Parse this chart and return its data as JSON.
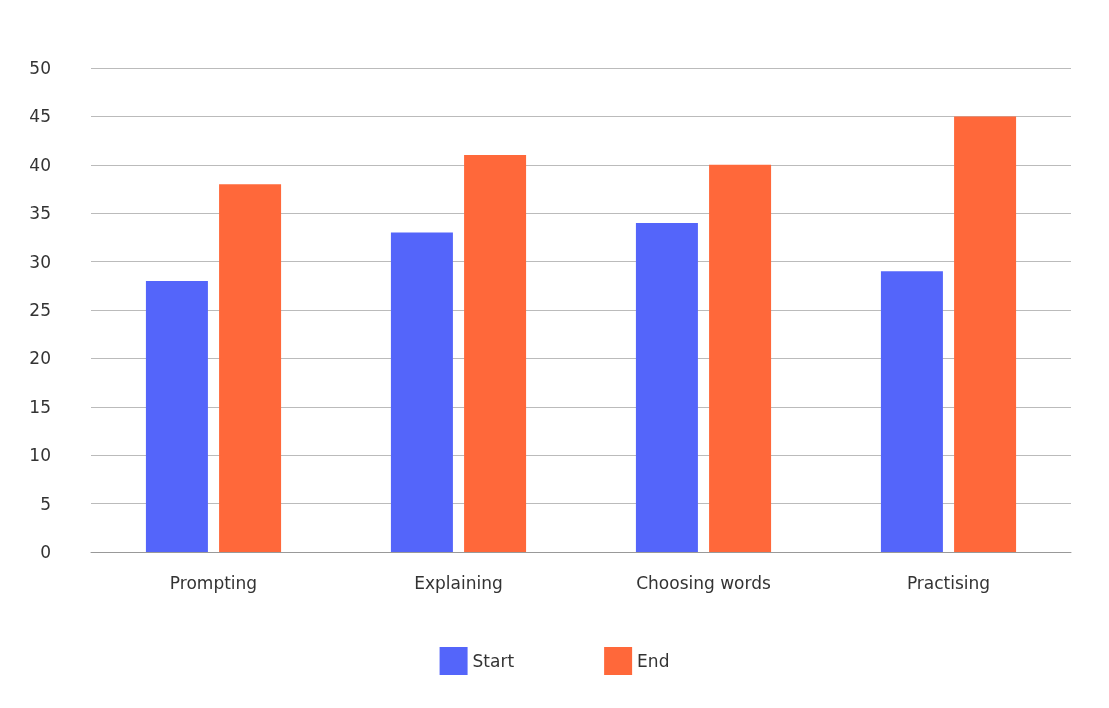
{
  "chart_data": {
    "type": "bar",
    "categories": [
      "Prompting",
      "Explaining",
      "Choosing words",
      "Practising"
    ],
    "series": [
      {
        "name": "Start",
        "color": "#5465fa",
        "values": [
          28,
          33,
          34,
          29
        ]
      },
      {
        "name": "End",
        "color": "#ff683a",
        "values": [
          38,
          41,
          40,
          45
        ]
      }
    ],
    "ylim": [
      0,
      50
    ],
    "yticks": [
      0,
      5,
      10,
      15,
      20,
      25,
      30,
      35,
      40,
      45,
      50
    ],
    "grid": "y",
    "legend": "bottom"
  }
}
